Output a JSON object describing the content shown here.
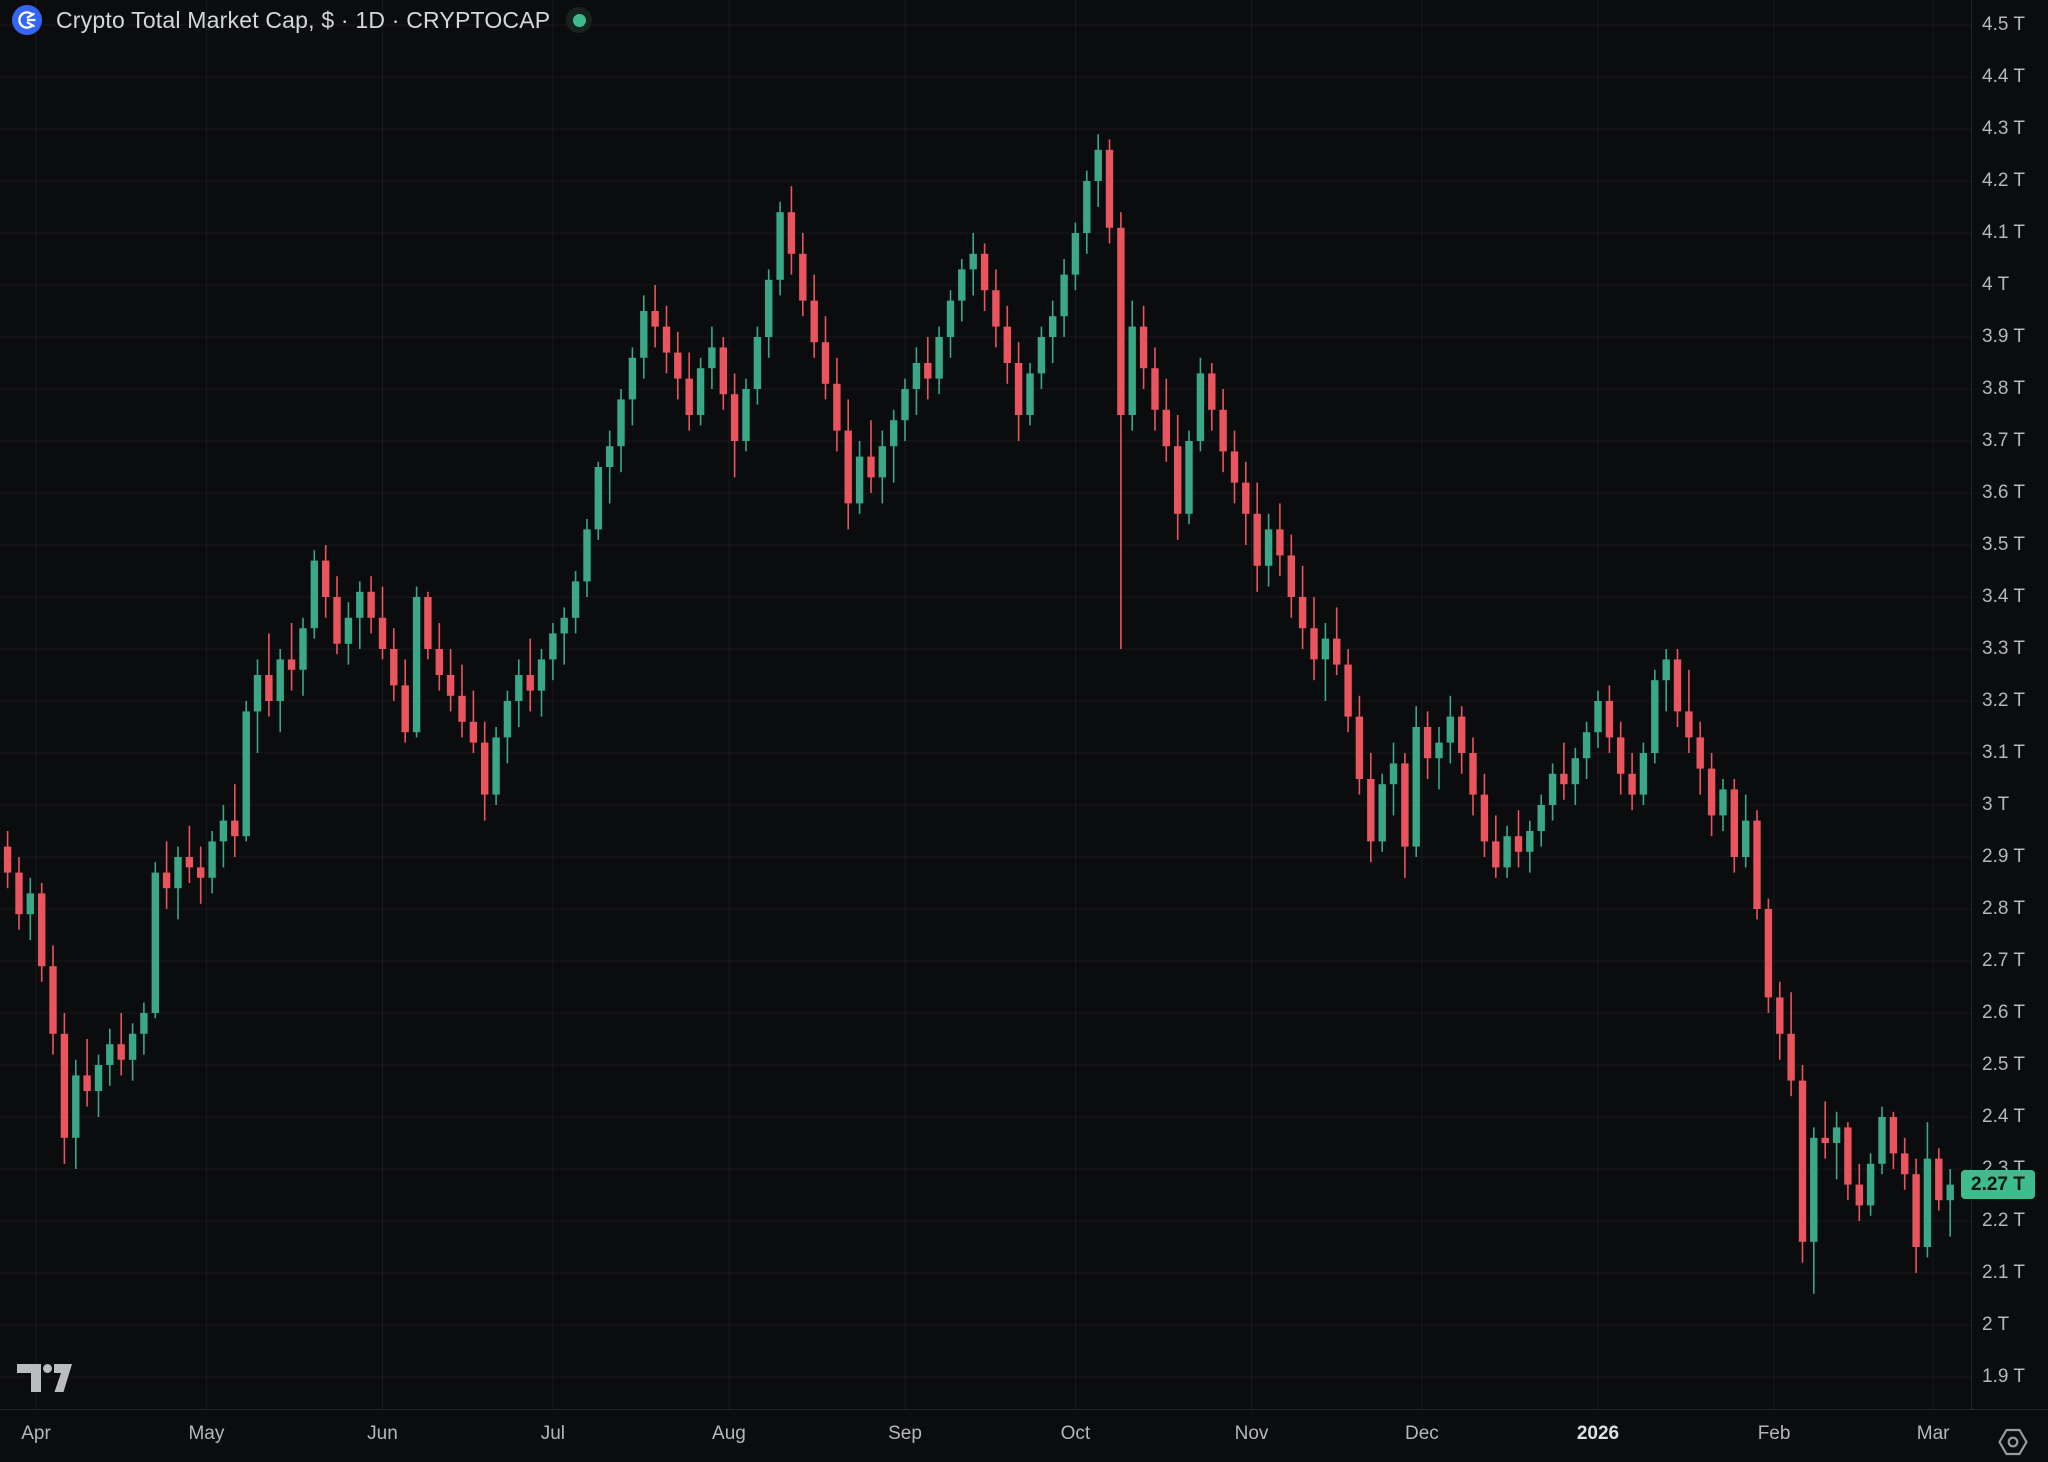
{
  "header": {
    "title": "Crypto Total Market Cap, $ · 1D · CRYPTOCAP",
    "market_status": "open",
    "status_dot_color": "#3fbc8d",
    "icon": "cryptocap-coin-icon",
    "icon_bg": "#3566f3"
  },
  "price_scale": {
    "current_price_label": "2.27 T",
    "current_price_value": 2.27,
    "badge_bg": "#3fbc8d",
    "badge_text_color": "#0a1712",
    "tick_labels": [
      "4.5 T",
      "4.4 T",
      "4.3 T",
      "4.2 T",
      "4.1 T",
      "4 T",
      "3.9 T",
      "3.8 T",
      "3.7 T",
      "3.6 T",
      "3.5 T",
      "3.4 T",
      "3.3 T",
      "3.2 T",
      "3.1 T",
      "3 T",
      "2.9 T",
      "2.8 T",
      "2.7 T",
      "2.6 T",
      "2.5 T",
      "2.4 T",
      "2.3 T",
      "2.2 T",
      "2.1 T",
      "2 T",
      "1.9 T"
    ]
  },
  "time_scale": {
    "tick_labels": [
      "Apr",
      "May",
      "Jun",
      "Jul",
      "Aug",
      "Sep",
      "Oct",
      "Nov",
      "Dec",
      "2026",
      "Feb",
      "Mar"
    ],
    "bold_label": "2026"
  },
  "watermark": {
    "name": "tradingview-logo"
  },
  "chart_data": {
    "type": "candlestick",
    "title": "Crypto Total Market Cap, $",
    "symbol": "CRYPTOCAP",
    "interval": "1D",
    "y_unit": "trillion USD",
    "ylim": [
      1.9,
      4.5
    ],
    "y_tick_step": 0.1,
    "grid": true,
    "up_color": "#3aa886",
    "down_color": "#e9545e",
    "x_months": [
      {
        "label": "Apr",
        "day": 0
      },
      {
        "label": "May",
        "day": 30
      },
      {
        "label": "Jun",
        "day": 61
      },
      {
        "label": "Jul",
        "day": 91
      },
      {
        "label": "Aug",
        "day": 122
      },
      {
        "label": "Sep",
        "day": 153
      },
      {
        "label": "Oct",
        "day": 183
      },
      {
        "label": "Nov",
        "day": 214
      },
      {
        "label": "Dec",
        "day": 244
      },
      {
        "label": "2026",
        "day": 275,
        "bold": true
      },
      {
        "label": "Feb",
        "day": 306
      },
      {
        "label": "Mar",
        "day": 334
      }
    ],
    "start_day_offset": -6,
    "candle_interval_days": 2,
    "candles": [
      [
        2.92,
        2.95,
        2.84,
        2.87
      ],
      [
        2.87,
        2.9,
        2.76,
        2.79
      ],
      [
        2.79,
        2.86,
        2.74,
        2.83
      ],
      [
        2.83,
        2.85,
        2.66,
        2.69
      ],
      [
        2.69,
        2.73,
        2.52,
        2.56
      ],
      [
        2.56,
        2.6,
        2.31,
        2.36
      ],
      [
        2.36,
        2.51,
        2.3,
        2.48
      ],
      [
        2.48,
        2.55,
        2.42,
        2.45
      ],
      [
        2.45,
        2.52,
        2.4,
        2.5
      ],
      [
        2.5,
        2.57,
        2.46,
        2.54
      ],
      [
        2.54,
        2.6,
        2.48,
        2.51
      ],
      [
        2.51,
        2.58,
        2.47,
        2.56
      ],
      [
        2.56,
        2.62,
        2.52,
        2.6
      ],
      [
        2.6,
        2.89,
        2.59,
        2.87
      ],
      [
        2.87,
        2.93,
        2.8,
        2.84
      ],
      [
        2.84,
        2.92,
        2.78,
        2.9
      ],
      [
        2.9,
        2.96,
        2.85,
        2.88
      ],
      [
        2.88,
        2.92,
        2.81,
        2.86
      ],
      [
        2.86,
        2.95,
        2.83,
        2.93
      ],
      [
        2.93,
        3.0,
        2.88,
        2.97
      ],
      [
        2.97,
        3.04,
        2.9,
        2.94
      ],
      [
        2.94,
        3.2,
        2.93,
        3.18
      ],
      [
        3.18,
        3.28,
        3.1,
        3.25
      ],
      [
        3.25,
        3.33,
        3.17,
        3.2
      ],
      [
        3.2,
        3.3,
        3.14,
        3.28
      ],
      [
        3.28,
        3.35,
        3.22,
        3.26
      ],
      [
        3.26,
        3.36,
        3.21,
        3.34
      ],
      [
        3.34,
        3.49,
        3.32,
        3.47
      ],
      [
        3.47,
        3.5,
        3.36,
        3.4
      ],
      [
        3.4,
        3.44,
        3.29,
        3.31
      ],
      [
        3.31,
        3.39,
        3.27,
        3.36
      ],
      [
        3.36,
        3.43,
        3.3,
        3.41
      ],
      [
        3.41,
        3.44,
        3.33,
        3.36
      ],
      [
        3.36,
        3.42,
        3.28,
        3.3
      ],
      [
        3.3,
        3.34,
        3.2,
        3.23
      ],
      [
        3.23,
        3.28,
        3.12,
        3.14
      ],
      [
        3.14,
        3.42,
        3.13,
        3.4
      ],
      [
        3.4,
        3.41,
        3.28,
        3.3
      ],
      [
        3.3,
        3.35,
        3.22,
        3.25
      ],
      [
        3.25,
        3.3,
        3.18,
        3.21
      ],
      [
        3.21,
        3.27,
        3.13,
        3.16
      ],
      [
        3.16,
        3.22,
        3.1,
        3.12
      ],
      [
        3.12,
        3.16,
        2.97,
        3.02
      ],
      [
        3.02,
        3.15,
        3.0,
        3.13
      ],
      [
        3.13,
        3.22,
        3.08,
        3.2
      ],
      [
        3.2,
        3.28,
        3.15,
        3.25
      ],
      [
        3.25,
        3.32,
        3.18,
        3.22
      ],
      [
        3.22,
        3.3,
        3.17,
        3.28
      ],
      [
        3.28,
        3.35,
        3.24,
        3.33
      ],
      [
        3.33,
        3.38,
        3.27,
        3.36
      ],
      [
        3.36,
        3.45,
        3.33,
        3.43
      ],
      [
        3.43,
        3.55,
        3.4,
        3.53
      ],
      [
        3.53,
        3.66,
        3.51,
        3.65
      ],
      [
        3.65,
        3.72,
        3.58,
        3.69
      ],
      [
        3.69,
        3.8,
        3.64,
        3.78
      ],
      [
        3.78,
        3.88,
        3.73,
        3.86
      ],
      [
        3.86,
        3.98,
        3.82,
        3.95
      ],
      [
        3.95,
        4.0,
        3.88,
        3.92
      ],
      [
        3.92,
        3.96,
        3.83,
        3.87
      ],
      [
        3.87,
        3.91,
        3.78,
        3.82
      ],
      [
        3.82,
        3.87,
        3.72,
        3.75
      ],
      [
        3.75,
        3.86,
        3.73,
        3.84
      ],
      [
        3.84,
        3.92,
        3.8,
        3.88
      ],
      [
        3.88,
        3.9,
        3.76,
        3.79
      ],
      [
        3.79,
        3.83,
        3.63,
        3.7
      ],
      [
        3.7,
        3.82,
        3.68,
        3.8
      ],
      [
        3.8,
        3.92,
        3.77,
        3.9
      ],
      [
        3.9,
        4.03,
        3.86,
        4.01
      ],
      [
        4.01,
        4.16,
        3.98,
        4.14
      ],
      [
        4.14,
        4.19,
        4.02,
        4.06
      ],
      [
        4.06,
        4.1,
        3.94,
        3.97
      ],
      [
        3.97,
        4.02,
        3.86,
        3.89
      ],
      [
        3.89,
        3.94,
        3.78,
        3.81
      ],
      [
        3.81,
        3.86,
        3.68,
        3.72
      ],
      [
        3.72,
        3.78,
        3.53,
        3.58
      ],
      [
        3.58,
        3.7,
        3.56,
        3.67
      ],
      [
        3.67,
        3.74,
        3.6,
        3.63
      ],
      [
        3.63,
        3.72,
        3.58,
        3.69
      ],
      [
        3.69,
        3.76,
        3.62,
        3.74
      ],
      [
        3.74,
        3.82,
        3.7,
        3.8
      ],
      [
        3.8,
        3.88,
        3.75,
        3.85
      ],
      [
        3.85,
        3.9,
        3.78,
        3.82
      ],
      [
        3.82,
        3.92,
        3.79,
        3.9
      ],
      [
        3.9,
        3.99,
        3.86,
        3.97
      ],
      [
        3.97,
        4.05,
        3.93,
        4.03
      ],
      [
        4.03,
        4.1,
        3.98,
        4.06
      ],
      [
        4.06,
        4.08,
        3.95,
        3.99
      ],
      [
        3.99,
        4.03,
        3.88,
        3.92
      ],
      [
        3.92,
        3.96,
        3.81,
        3.85
      ],
      [
        3.85,
        3.89,
        3.7,
        3.75
      ],
      [
        3.75,
        3.85,
        3.73,
        3.83
      ],
      [
        3.83,
        3.92,
        3.8,
        3.9
      ],
      [
        3.9,
        3.97,
        3.85,
        3.94
      ],
      [
        3.94,
        4.05,
        3.9,
        4.02
      ],
      [
        4.02,
        4.12,
        3.99,
        4.1
      ],
      [
        4.1,
        4.22,
        4.06,
        4.2
      ],
      [
        4.2,
        4.29,
        4.15,
        4.26
      ],
      [
        4.26,
        4.28,
        4.08,
        4.11
      ],
      [
        4.11,
        4.14,
        3.3,
        3.75
      ],
      [
        3.75,
        3.97,
        3.72,
        3.92
      ],
      [
        3.92,
        3.96,
        3.8,
        3.84
      ],
      [
        3.84,
        3.88,
        3.72,
        3.76
      ],
      [
        3.76,
        3.82,
        3.66,
        3.69
      ],
      [
        3.69,
        3.75,
        3.51,
        3.56
      ],
      [
        3.56,
        3.72,
        3.54,
        3.7
      ],
      [
        3.7,
        3.86,
        3.68,
        3.83
      ],
      [
        3.83,
        3.85,
        3.72,
        3.76
      ],
      [
        3.76,
        3.8,
        3.64,
        3.68
      ],
      [
        3.68,
        3.72,
        3.58,
        3.62
      ],
      [
        3.62,
        3.66,
        3.5,
        3.56
      ],
      [
        3.56,
        3.62,
        3.41,
        3.46
      ],
      [
        3.46,
        3.56,
        3.42,
        3.53
      ],
      [
        3.53,
        3.58,
        3.44,
        3.48
      ],
      [
        3.48,
        3.52,
        3.36,
        3.4
      ],
      [
        3.4,
        3.46,
        3.3,
        3.34
      ],
      [
        3.34,
        3.4,
        3.24,
        3.28
      ],
      [
        3.28,
        3.35,
        3.2,
        3.32
      ],
      [
        3.32,
        3.38,
        3.25,
        3.27
      ],
      [
        3.27,
        3.3,
        3.14,
        3.17
      ],
      [
        3.17,
        3.21,
        3.02,
        3.05
      ],
      [
        3.05,
        3.1,
        2.89,
        2.93
      ],
      [
        2.93,
        3.06,
        2.91,
        3.04
      ],
      [
        3.04,
        3.12,
        2.98,
        3.08
      ],
      [
        3.08,
        3.1,
        2.86,
        2.92
      ],
      [
        2.92,
        3.19,
        2.9,
        3.15
      ],
      [
        3.15,
        3.18,
        3.05,
        3.09
      ],
      [
        3.09,
        3.15,
        3.03,
        3.12
      ],
      [
        3.12,
        3.21,
        3.08,
        3.17
      ],
      [
        3.17,
        3.19,
        3.06,
        3.1
      ],
      [
        3.1,
        3.13,
        2.98,
        3.02
      ],
      [
        3.02,
        3.06,
        2.9,
        2.93
      ],
      [
        2.93,
        2.98,
        2.86,
        2.88
      ],
      [
        2.88,
        2.96,
        2.86,
        2.94
      ],
      [
        2.94,
        2.99,
        2.88,
        2.91
      ],
      [
        2.91,
        2.97,
        2.87,
        2.95
      ],
      [
        2.95,
        3.02,
        2.92,
        3.0
      ],
      [
        3.0,
        3.08,
        2.97,
        3.06
      ],
      [
        3.06,
        3.12,
        3.01,
        3.04
      ],
      [
        3.04,
        3.11,
        3.0,
        3.09
      ],
      [
        3.09,
        3.16,
        3.05,
        3.14
      ],
      [
        3.14,
        3.22,
        3.11,
        3.2
      ],
      [
        3.2,
        3.23,
        3.1,
        3.13
      ],
      [
        3.13,
        3.16,
        3.02,
        3.06
      ],
      [
        3.06,
        3.1,
        2.99,
        3.02
      ],
      [
        3.02,
        3.12,
        3.0,
        3.1
      ],
      [
        3.1,
        3.26,
        3.08,
        3.24
      ],
      [
        3.24,
        3.3,
        3.18,
        3.28
      ],
      [
        3.28,
        3.3,
        3.15,
        3.18
      ],
      [
        3.18,
        3.26,
        3.1,
        3.13
      ],
      [
        3.13,
        3.16,
        3.02,
        3.07
      ],
      [
        3.07,
        3.1,
        2.94,
        2.98
      ],
      [
        2.98,
        3.05,
        2.95,
        3.03
      ],
      [
        3.03,
        3.05,
        2.87,
        2.9
      ],
      [
        2.9,
        3.02,
        2.88,
        2.97
      ],
      [
        2.97,
        2.99,
        2.78,
        2.8
      ],
      [
        2.8,
        2.82,
        2.6,
        2.63
      ],
      [
        2.63,
        2.66,
        2.51,
        2.56
      ],
      [
        2.56,
        2.64,
        2.44,
        2.47
      ],
      [
        2.47,
        2.5,
        2.12,
        2.16
      ],
      [
        2.16,
        2.38,
        2.06,
        2.36
      ],
      [
        2.36,
        2.43,
        2.32,
        2.35
      ],
      [
        2.35,
        2.41,
        2.28,
        2.38
      ],
      [
        2.38,
        2.39,
        2.24,
        2.27
      ],
      [
        2.27,
        2.31,
        2.2,
        2.23
      ],
      [
        2.23,
        2.33,
        2.21,
        2.31
      ],
      [
        2.31,
        2.42,
        2.29,
        2.4
      ],
      [
        2.4,
        2.41,
        2.3,
        2.33
      ],
      [
        2.33,
        2.36,
        2.26,
        2.29
      ],
      [
        2.29,
        2.32,
        2.1,
        2.15
      ],
      [
        2.15,
        2.39,
        2.13,
        2.32
      ],
      [
        2.32,
        2.34,
        2.22,
        2.24
      ],
      [
        2.24,
        2.3,
        2.17,
        2.27
      ]
    ],
    "notable_points": {
      "april_low": 2.3,
      "may_high": 3.5,
      "june_low": 2.97,
      "july_high": 4.0,
      "august_high": 4.19,
      "september_high": 4.1,
      "october_ath": 4.29,
      "october_crash_low": 3.3,
      "november_low": 2.86,
      "january_2026_high": 3.3,
      "february_low": 2.06,
      "last_close": 2.27
    }
  }
}
